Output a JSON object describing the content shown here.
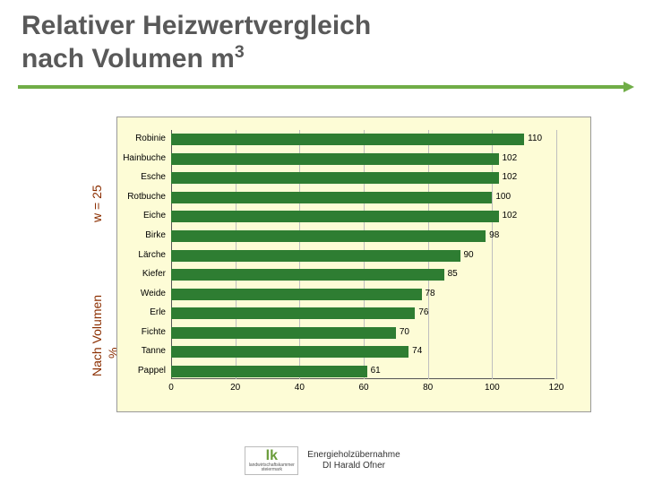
{
  "title_line1": "Relativer Heizwertvergleich",
  "title_line2_prefix": "nach Volumen m",
  "title_line2_sup": "3",
  "side_label_top": "w = 25",
  "side_label_bottom_a": "Nach Volumen",
  "side_label_bottom_b": "%",
  "chart": {
    "type": "bar-horizontal",
    "background_color": "#fdfcd6",
    "bar_color": "#2e7d32",
    "grid_color": "#bfbfbf",
    "xlim": [
      0,
      120
    ],
    "xtick_step": 20,
    "categories": [
      "Robinie",
      "Hainbuche",
      "Esche",
      "Rotbuche",
      "Eiche",
      "Birke",
      "Lärche",
      "Kiefer",
      "Weide",
      "Erle",
      "Fichte",
      "Tanne",
      "Pappel"
    ],
    "values": [
      110,
      102,
      102,
      100,
      102,
      98,
      90,
      85,
      78,
      76,
      70,
      74,
      61
    ],
    "xtick_labels": [
      "0",
      "20",
      "40",
      "60",
      "80",
      "100",
      "120"
    ]
  },
  "footer": {
    "logo_mark": "lk",
    "logo_sub1": "landwirtschaftskammer",
    "logo_sub2": "steiermark",
    "text_line1": "Energieholzübernahme",
    "text_line2": "DI Harald Ofner"
  }
}
